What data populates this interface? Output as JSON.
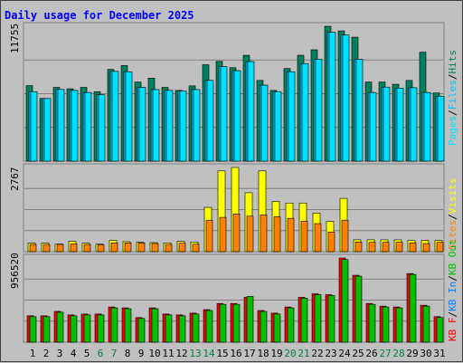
{
  "chart_data": [
    {
      "type": "bar",
      "title": "Daily usage for December 2025",
      "categories": [
        "1",
        "2",
        "3",
        "4",
        "5",
        "6",
        "7",
        "8",
        "9",
        "10",
        "11",
        "12",
        "13",
        "14",
        "15",
        "16",
        "17",
        "18",
        "19",
        "20",
        "21",
        "22",
        "23",
        "24",
        "25",
        "26",
        "27",
        "28",
        "29",
        "30",
        "31"
      ],
      "weekend_days": [
        "6",
        "7",
        "13",
        "14",
        "20",
        "21",
        "27",
        "28"
      ],
      "y_max_label": "11755",
      "legend": [
        "Pages",
        "/",
        "Files",
        "/",
        "Hits"
      ],
      "series": [
        {
          "name": "Hits",
          "color": "#00805c",
          "values": [
            6510,
            5410,
            6360,
            6240,
            6360,
            5990,
            7910,
            8240,
            6820,
            7160,
            6360,
            6100,
            6490,
            8310,
            8600,
            8060,
            9130,
            6960,
            6100,
            7990,
            9130,
            9600,
            11630,
            11230,
            10690,
            6820,
            6820,
            6630,
            6960,
            9390,
            5880
          ]
        },
        {
          "name": "Files",
          "color": "#00c0ff",
          "values": [
            5990,
            5400,
            6180,
            6100,
            5920,
            5720,
            7740,
            7710,
            6360,
            6170,
            6100,
            6050,
            6170,
            6960,
            8150,
            7800,
            8580,
            6550,
            5990,
            7710,
            8410,
            8790,
            11110,
            10870,
            8780,
            5920,
            6380,
            6300,
            6330,
            5920,
            5600
          ]
        },
        {
          "name": "Pages",
          "color": "#00e0ff",
          "values": [
            5990,
            5400,
            6180,
            6100,
            5920,
            5720,
            7740,
            7710,
            6360,
            6170,
            6100,
            6050,
            6170,
            6960,
            8150,
            7800,
            8580,
            6550,
            5990,
            7710,
            8410,
            8790,
            11110,
            10870,
            8780,
            5920,
            6380,
            6300,
            6330,
            5920,
            5600
          ]
        }
      ]
    },
    {
      "type": "bar",
      "y_max_label": "2767",
      "legend": [
        "Visits",
        "/",
        "Sites"
      ],
      "series": [
        {
          "name": "Visits",
          "color": "#ffff00",
          "values": [
            270,
            270,
            250,
            330,
            270,
            240,
            360,
            320,
            300,
            290,
            280,
            330,
            310,
            1420,
            2590,
            2700,
            1890,
            2590,
            1610,
            1560,
            1560,
            1240,
            970,
            1710,
            380,
            380,
            380,
            380,
            360,
            360,
            360
          ]
        },
        {
          "name": "Sites",
          "color": "#ff8000",
          "values": [
            230,
            230,
            230,
            250,
            230,
            220,
            280,
            280,
            280,
            260,
            230,
            270,
            240,
            1010,
            1100,
            1210,
            1140,
            1180,
            1120,
            1070,
            980,
            900,
            630,
            1010,
            310,
            300,
            300,
            300,
            280,
            260,
            300
          ]
        }
      ]
    },
    {
      "type": "bar",
      "y_max_label": "956520",
      "legend": [
        "KB F",
        "/",
        "KB In",
        "/",
        "KB Out"
      ],
      "series": [
        {
          "name": "KB F",
          "color": "#ff0000",
          "values": [
            300000,
            300000,
            350000,
            310000,
            320000,
            320000,
            400000,
            390000,
            280000,
            390000,
            320000,
            310000,
            330000,
            370000,
            440000,
            440000,
            510000,
            360000,
            330000,
            400000,
            510000,
            550000,
            540000,
            956520,
            760000,
            440000,
            410000,
            400000,
            780000,
            420000,
            290000
          ]
        },
        {
          "name": "KB In",
          "color": "#0080ff",
          "values": [
            0,
            0,
            0,
            0,
            0,
            0,
            0,
            0,
            0,
            0,
            0,
            0,
            0,
            0,
            0,
            0,
            0,
            0,
            0,
            0,
            0,
            0,
            0,
            0,
            0,
            0,
            0,
            0,
            0,
            0,
            0
          ]
        },
        {
          "name": "KB Out",
          "color": "#00c000",
          "values": [
            290000,
            290000,
            340000,
            300000,
            310000,
            310000,
            390000,
            380000,
            270000,
            380000,
            310000,
            300000,
            320000,
            360000,
            430000,
            430000,
            520000,
            350000,
            320000,
            390000,
            500000,
            540000,
            530000,
            940000,
            750000,
            430000,
            400000,
            390000,
            770000,
            410000,
            280000
          ]
        }
      ]
    }
  ],
  "colors": {
    "title": "#0000ff",
    "weekend": "#008040",
    "weekday": "#000000"
  }
}
